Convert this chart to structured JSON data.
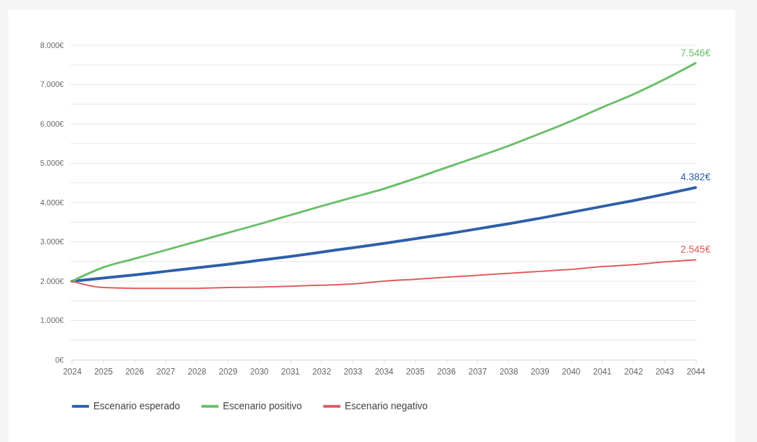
{
  "chart_data": {
    "type": "line",
    "categories": [
      "2024",
      "2025",
      "2026",
      "2027",
      "2028",
      "2029",
      "2030",
      "2031",
      "2032",
      "2033",
      "2034",
      "2035",
      "2036",
      "2037",
      "2038",
      "2039",
      "2040",
      "2041",
      "2042",
      "2043",
      "2044"
    ],
    "series": [
      {
        "name": "Escenario esperado",
        "color": "#2e5fa8",
        "values": [
          2000,
          2080,
          2160,
          2250,
          2340,
          2430,
          2530,
          2630,
          2740,
          2850,
          2960,
          3080,
          3200,
          3330,
          3460,
          3600,
          3750,
          3900,
          4050,
          4210,
          4382
        ],
        "value_labels": [
          null,
          null,
          null,
          null,
          null,
          null,
          null,
          null,
          null,
          null,
          null,
          null,
          null,
          null,
          null,
          null,
          null,
          null,
          null,
          null,
          "4.382€"
        ]
      },
      {
        "name": "Escenario positivo",
        "color": "#6abf69",
        "values": [
          2000,
          2350,
          2570,
          2790,
          3010,
          3230,
          3450,
          3680,
          3910,
          4130,
          4350,
          4610,
          4890,
          5160,
          5440,
          5750,
          6070,
          6420,
          6750,
          7130,
          7546
        ],
        "value_labels": [
          null,
          null,
          null,
          null,
          null,
          null,
          null,
          null,
          null,
          null,
          null,
          null,
          null,
          null,
          null,
          null,
          null,
          null,
          null,
          null,
          "7.546€"
        ]
      },
      {
        "name": "Escenario negativo",
        "color": "#e05a5a",
        "values": [
          2000,
          1840,
          1820,
          1820,
          1820,
          1840,
          1850,
          1870,
          1900,
          1930,
          2000,
          2050,
          2100,
          2150,
          2200,
          2250,
          2300,
          2370,
          2420,
          2490,
          2545
        ],
        "value_labels": [
          null,
          null,
          null,
          null,
          null,
          null,
          null,
          null,
          null,
          null,
          null,
          null,
          null,
          null,
          null,
          null,
          null,
          null,
          null,
          null,
          "2.545€"
        ]
      }
    ],
    "ylim": [
      0,
      8000
    ],
    "yticks": [
      {
        "value": 0,
        "label": "0€"
      },
      {
        "value": 500,
        "label": null
      },
      {
        "value": 1000,
        "label": "1.000€"
      },
      {
        "value": 1500,
        "label": null
      },
      {
        "value": 2000,
        "label": "2.000€"
      },
      {
        "value": 2500,
        "label": null
      },
      {
        "value": 3000,
        "label": "3.000€"
      },
      {
        "value": 3500,
        "label": null
      },
      {
        "value": 4000,
        "label": "4.000€"
      },
      {
        "value": 4500,
        "label": null
      },
      {
        "value": 5000,
        "label": "5.000€"
      },
      {
        "value": 5500,
        "label": null
      },
      {
        "value": 6000,
        "label": "6.000€"
      },
      {
        "value": 6500,
        "label": null
      },
      {
        "value": 7000,
        "label": "7.000€"
      },
      {
        "value": 7500,
        "label": null
      },
      {
        "value": 8000,
        "label": "8.000€"
      }
    ],
    "grid": "y",
    "legend": "bottom",
    "marker": "none",
    "line_style": "solid"
  }
}
